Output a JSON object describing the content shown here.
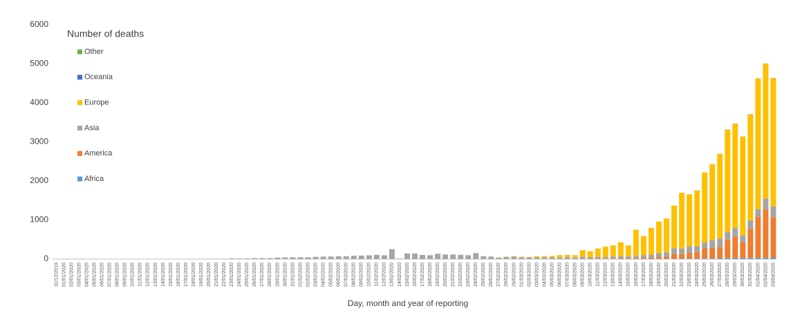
{
  "chart_data": {
    "type": "stacked_bar",
    "legend_title": "Number of deaths",
    "x_label": "Day, month and year of reporting",
    "legend": "upper left",
    "grid": false,
    "ylim": [
      0,
      6000
    ],
    "yticks": [
      0,
      1000,
      2000,
      3000,
      4000,
      5000,
      6000
    ],
    "categories": [
      "31/12/2019",
      "01/01/2020",
      "02/01/2020",
      "03/01/2020",
      "04/01/2020",
      "05/01/2020",
      "06/01/2020",
      "07/01/2020",
      "08/01/2020",
      "09/01/2020",
      "10/01/2020",
      "11/01/2020",
      "12/01/2020",
      "13/01/2020",
      "14/01/2020",
      "15/01/2020",
      "16/01/2020",
      "17/01/2020",
      "18/01/2020",
      "19/01/2020",
      "20/01/2020",
      "21/01/2020",
      "22/01/2020",
      "23/01/2020",
      "24/01/2020",
      "25/01/2020",
      "26/01/2020",
      "27/01/2020",
      "28/01/2020",
      "29/01/2020",
      "30/01/2020",
      "31/01/2020",
      "01/02/2020",
      "02/02/2020",
      "03/02/2020",
      "04/02/2020",
      "05/02/2020",
      "06/02/2020",
      "07/02/2020",
      "08/02/2020",
      "09/02/2020",
      "10/02/2020",
      "11/02/2020",
      "12/02/2020",
      "13/02/2020",
      "14/02/2020",
      "15/02/2020",
      "16/02/2020",
      "17/02/2020",
      "18/02/2020",
      "19/02/2020",
      "20/02/2020",
      "21/02/2020",
      "22/02/2020",
      "23/02/2020",
      "24/02/2020",
      "25/02/2020",
      "26/02/2020",
      "27/02/2020",
      "28/02/2020",
      "29/02/2020",
      "01/03/2020",
      "02/03/2020",
      "03/03/2020",
      "04/03/2020",
      "05/03/2020",
      "06/03/2020",
      "07/03/2020",
      "08/03/2020",
      "09/03/2020",
      "10/03/2020",
      "11/03/2020",
      "12/03/2020",
      "13/03/2020",
      "14/03/2020",
      "15/03/2020",
      "16/03/2020",
      "17/03/2020",
      "18/03/2020",
      "19/03/2020",
      "20/03/2020",
      "21/03/2020",
      "22/03/2020",
      "23/03/2020",
      "24/03/2020",
      "25/03/2020",
      "26/03/2020",
      "27/03/2020",
      "28/03/2020",
      "29/03/2020",
      "30/03/2020",
      "31/03/2020",
      "01/04/2020",
      "02/04/2020",
      "03/04/2020"
    ],
    "series": [
      {
        "name": "Africa",
        "color": "#5b9bd5",
        "values": [
          0,
          0,
          0,
          0,
          0,
          0,
          0,
          0,
          0,
          0,
          0,
          0,
          0,
          0,
          0,
          0,
          0,
          0,
          0,
          0,
          0,
          0,
          0,
          0,
          0,
          0,
          0,
          0,
          0,
          0,
          0,
          0,
          0,
          0,
          0,
          0,
          0,
          0,
          0,
          0,
          0,
          0,
          0,
          0,
          0,
          0,
          0,
          0,
          0,
          0,
          0,
          0,
          0,
          0,
          0,
          0,
          0,
          0,
          0,
          0,
          0,
          0,
          0,
          0,
          0,
          0,
          0,
          0,
          0,
          0,
          1,
          1,
          1,
          2,
          2,
          3,
          3,
          4,
          4,
          5,
          6,
          8,
          10,
          10,
          12,
          15,
          15,
          18,
          20,
          20,
          25,
          25,
          30,
          30,
          35
        ]
      },
      {
        "name": "America",
        "color": "#ed7d31",
        "values": [
          0,
          0,
          0,
          0,
          0,
          0,
          0,
          0,
          0,
          0,
          0,
          0,
          0,
          0,
          0,
          0,
          0,
          0,
          0,
          0,
          0,
          0,
          0,
          0,
          0,
          0,
          0,
          0,
          0,
          0,
          0,
          0,
          0,
          0,
          0,
          0,
          0,
          0,
          0,
          0,
          0,
          0,
          0,
          0,
          0,
          0,
          0,
          0,
          0,
          0,
          0,
          0,
          0,
          0,
          0,
          0,
          0,
          0,
          0,
          0,
          1,
          1,
          4,
          3,
          4,
          2,
          3,
          5,
          4,
          5,
          8,
          7,
          10,
          10,
          15,
          15,
          20,
          25,
          35,
          45,
          55,
          130,
          120,
          150,
          170,
          260,
          270,
          290,
          480,
          560,
          400,
          750,
          1050,
          1240,
          1040
        ]
      },
      {
        "name": "Asia",
        "color": "#a5a5a5",
        "values": [
          0,
          0,
          0,
          0,
          0,
          0,
          0,
          0,
          0,
          0,
          0,
          1,
          0,
          0,
          0,
          0,
          0,
          1,
          0,
          1,
          3,
          6,
          8,
          16,
          15,
          15,
          25,
          26,
          26,
          38,
          43,
          46,
          46,
          45,
          57,
          64,
          66,
          73,
          73,
          86,
          89,
          97,
          108,
          97,
          254,
          13,
          143,
          142,
          106,
          98,
          136,
          115,
          118,
          109,
          97,
          150,
          71,
          64,
          37,
          58,
          67,
          45,
          42,
          40,
          45,
          45,
          40,
          45,
          35,
          55,
          40,
          45,
          40,
          50,
          60,
          50,
          60,
          70,
          80,
          100,
          110,
          140,
          140,
          170,
          150,
          150,
          200,
          220,
          190,
          210,
          180,
          220,
          200,
          280,
          270
        ]
      },
      {
        "name": "Europe",
        "color": "#ffc000",
        "values": [
          0,
          0,
          0,
          0,
          0,
          0,
          0,
          0,
          0,
          0,
          0,
          0,
          0,
          0,
          0,
          0,
          0,
          0,
          0,
          0,
          0,
          0,
          0,
          0,
          0,
          0,
          0,
          0,
          0,
          0,
          0,
          0,
          0,
          0,
          0,
          0,
          0,
          0,
          0,
          0,
          0,
          0,
          0,
          0,
          0,
          0,
          1,
          0,
          0,
          0,
          0,
          0,
          0,
          1,
          2,
          4,
          3,
          2,
          5,
          4,
          8,
          14,
          9,
          27,
          26,
          33,
          57,
          55,
          61,
          170,
          151,
          217,
          269,
          288,
          353,
          282,
          667,
          491,
          681,
          810,
          869,
          1091,
          1429,
          1328,
          1427,
          1794,
          1943,
          2169,
          2627,
          2676,
          2533,
          2712,
          3347,
          3456,
          3292
        ]
      },
      {
        "name": "Oceania",
        "color": "#4472c4",
        "values": [
          0,
          0,
          0,
          0,
          0,
          0,
          0,
          0,
          0,
          0,
          0,
          0,
          0,
          0,
          0,
          0,
          0,
          0,
          0,
          0,
          0,
          0,
          0,
          0,
          0,
          0,
          0,
          0,
          0,
          0,
          0,
          0,
          0,
          0,
          0,
          0,
          0,
          0,
          0,
          0,
          0,
          0,
          0,
          0,
          0,
          0,
          0,
          0,
          0,
          0,
          0,
          0,
          0,
          0,
          0,
          0,
          0,
          0,
          0,
          0,
          0,
          0,
          0,
          0,
          0,
          0,
          0,
          0,
          0,
          0,
          0,
          0,
          0,
          0,
          0,
          0,
          0,
          0,
          0,
          0,
          0,
          1,
          1,
          2,
          1,
          1,
          2,
          3,
          3,
          4,
          2,
          3,
          3,
          4,
          3
        ]
      },
      {
        "name": "Other",
        "color": "#70ad47",
        "values": [
          0,
          0,
          0,
          0,
          0,
          0,
          0,
          0,
          0,
          0,
          0,
          0,
          0,
          0,
          0,
          0,
          0,
          0,
          0,
          0,
          0,
          0,
          0,
          0,
          0,
          0,
          0,
          0,
          0,
          0,
          0,
          0,
          0,
          0,
          0,
          0,
          0,
          0,
          0,
          0,
          0,
          0,
          0,
          0,
          0,
          0,
          0,
          0,
          0,
          0,
          0,
          2,
          0,
          0,
          1,
          0,
          0,
          0,
          0,
          1,
          0,
          0,
          0,
          0,
          0,
          0,
          0,
          0,
          0,
          0,
          0,
          0,
          0,
          0,
          0,
          0,
          0,
          0,
          0,
          0,
          0,
          0,
          0,
          0,
          0,
          0,
          0,
          0,
          0,
          0,
          0,
          0,
          0,
          0,
          0
        ]
      }
    ]
  }
}
